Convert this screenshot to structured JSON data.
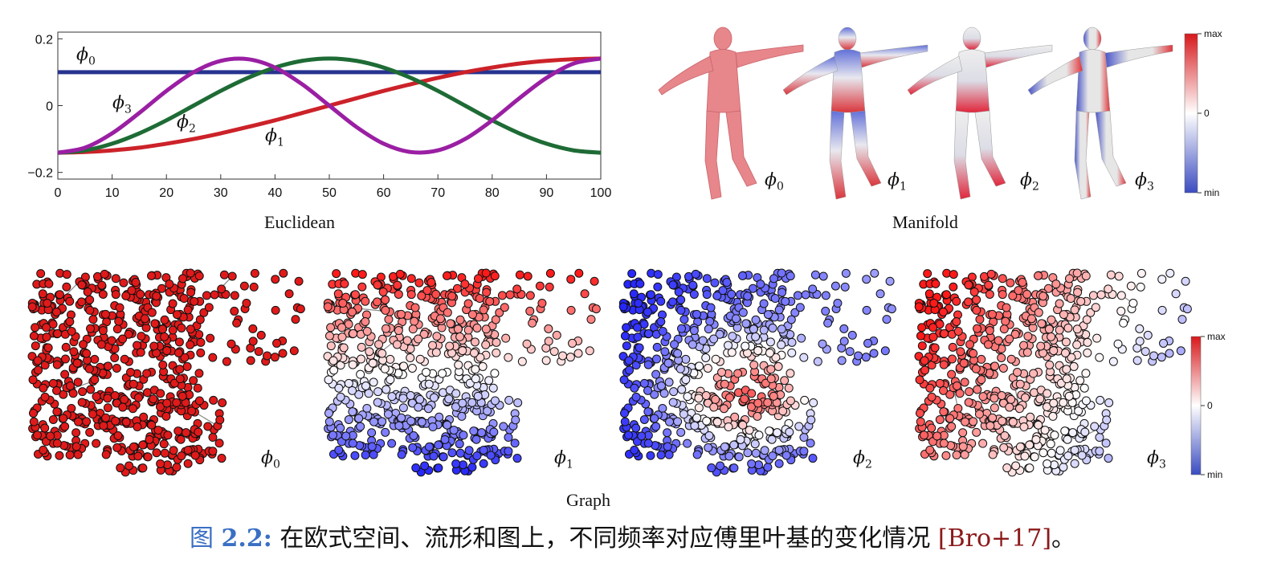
{
  "colors": {
    "red": "#cc2229",
    "green": "#1e6b35",
    "purple": "#9a1fa3",
    "blue": "#27338f",
    "cb_max": "#d7191c",
    "cb_min": "#3b4cc0"
  },
  "euclidean": {
    "label": "Euclidean",
    "phi_labels": [
      {
        "sym": "ϕ",
        "sub": "0"
      },
      {
        "sym": "ϕ",
        "sub": "3"
      },
      {
        "sym": "ϕ",
        "sub": "2"
      },
      {
        "sym": "ϕ",
        "sub": "1"
      }
    ]
  },
  "manifold": {
    "label": "Manifold",
    "phi_labels": [
      {
        "sym": "ϕ",
        "sub": "0"
      },
      {
        "sym": "ϕ",
        "sub": "1"
      },
      {
        "sym": "ϕ",
        "sub": "2"
      },
      {
        "sym": "ϕ",
        "sub": "3"
      }
    ],
    "colorbar": {
      "max": "max",
      "zero": "0",
      "min": "min"
    }
  },
  "graph": {
    "label": "Graph",
    "phi_labels": [
      {
        "sym": "ϕ",
        "sub": "0"
      },
      {
        "sym": "ϕ",
        "sub": "1"
      },
      {
        "sym": "ϕ",
        "sub": "2"
      },
      {
        "sym": "ϕ",
        "sub": "3"
      }
    ],
    "colorbar": {
      "max": "max",
      "zero": "0",
      "min": "min"
    }
  },
  "caption": {
    "label": "图",
    "number": "2.2:",
    "text": " 在欧式空间、流形和图上，不同频率对应傅里叶基的变化情况 ",
    "ref": "[Bro+17]",
    "end": "。"
  },
  "chart_data": {
    "type": "line",
    "title": "",
    "xlabel": "",
    "ylabel": "",
    "xlim": [
      0,
      100
    ],
    "ylim": [
      -0.22,
      0.22
    ],
    "xticks": [
      "0",
      "10",
      "20",
      "30",
      "40",
      "50",
      "60",
      "70",
      "80",
      "90",
      "100"
    ],
    "yticks": [
      "0.2",
      "0",
      "−0.2"
    ],
    "grid": false,
    "x": [
      0,
      5,
      10,
      15,
      20,
      25,
      30,
      35,
      40,
      45,
      50,
      55,
      60,
      65,
      70,
      75,
      80,
      85,
      90,
      95,
      100
    ],
    "series": [
      {
        "name": "ϕ0",
        "color": "#27338f",
        "values": [
          0.1,
          0.1,
          0.1,
          0.1,
          0.1,
          0.1,
          0.1,
          0.1,
          0.1,
          0.1,
          0.1,
          0.1,
          0.1,
          0.1,
          0.1,
          0.1,
          0.1,
          0.1,
          0.1,
          0.1,
          0.1
        ]
      },
      {
        "name": "ϕ1",
        "color": "#cc2229",
        "values": [
          -0.141,
          -0.139,
          -0.134,
          -0.126,
          -0.114,
          -0.1,
          -0.083,
          -0.064,
          -0.044,
          -0.022,
          0,
          0.022,
          0.044,
          0.064,
          0.083,
          0.1,
          0.114,
          0.126,
          0.134,
          0.139,
          0.141
        ]
      },
      {
        "name": "ϕ2",
        "color": "#1e6b35",
        "values": [
          -0.141,
          -0.134,
          -0.114,
          -0.083,
          -0.044,
          0,
          0.044,
          0.083,
          0.114,
          0.134,
          0.141,
          0.134,
          0.114,
          0.083,
          0.044,
          0,
          -0.044,
          -0.083,
          -0.114,
          -0.134,
          -0.141
        ]
      },
      {
        "name": "ϕ3",
        "color": "#9a1fa3",
        "values": [
          -0.141,
          -0.126,
          -0.083,
          -0.022,
          0.044,
          0.1,
          0.134,
          0.139,
          0.114,
          0.064,
          0,
          -0.064,
          -0.114,
          -0.139,
          -0.134,
          -0.1,
          -0.044,
          0.022,
          0.083,
          0.126,
          0.141
        ]
      }
    ]
  }
}
